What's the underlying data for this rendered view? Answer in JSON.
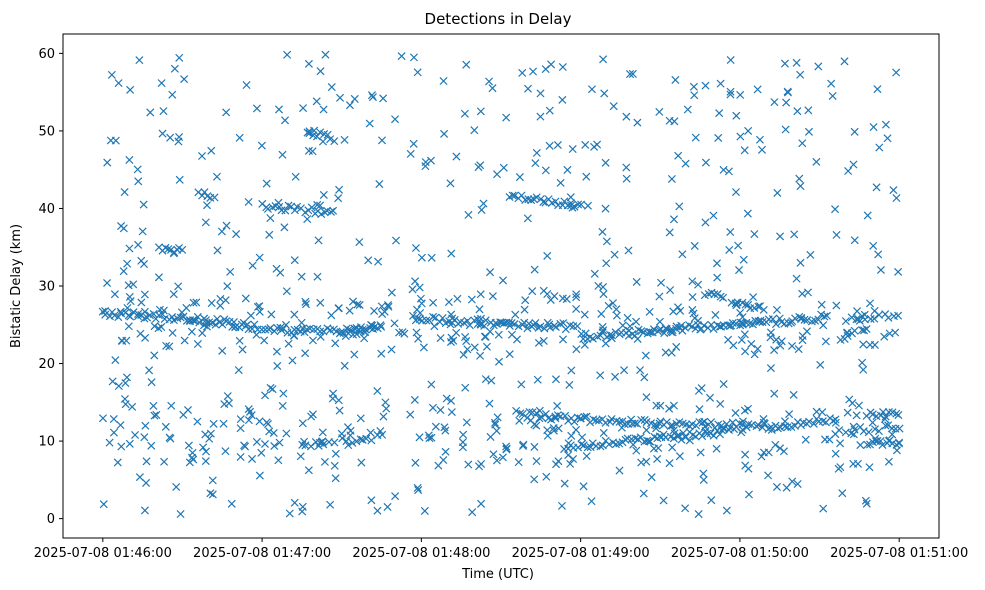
{
  "chart_data": {
    "type": "scatter",
    "title": "Detections in Delay",
    "xlabel": "Time (UTC)",
    "ylabel": "Bistatic Delay (km)",
    "marker": "x",
    "color": "#1f77b4",
    "xlim": [
      -0.25,
      5.25
    ],
    "ylim": [
      -2.5,
      62.5
    ],
    "x_unit": "minutes after 2025-07-08 01:46:00",
    "xticks": [
      {
        "value": 0,
        "label": "2025-07-08 01:46:00"
      },
      {
        "value": 1,
        "label": "2025-07-08 01:47:00"
      },
      {
        "value": 2,
        "label": "2025-07-08 01:48:00"
      },
      {
        "value": 3,
        "label": "2025-07-08 01:49:00"
      },
      {
        "value": 4,
        "label": "2025-07-08 01:50:00"
      },
      {
        "value": 5,
        "label": "2025-07-08 01:51:00"
      }
    ],
    "yticks": [
      {
        "value": 0,
        "label": "0"
      },
      {
        "value": 10,
        "label": "10"
      },
      {
        "value": 20,
        "label": "20"
      },
      {
        "value": 30,
        "label": "30"
      },
      {
        "value": 40,
        "label": "40"
      },
      {
        "value": 50,
        "label": "50"
      },
      {
        "value": 60,
        "label": "60"
      }
    ],
    "tracks": [
      {
        "x_start": 0.0,
        "x_end": 0.55,
        "y_start": 26.5,
        "y_end": 25.8,
        "step": 0.02
      },
      {
        "x_start": 0.55,
        "x_end": 1.2,
        "y_start": 25.8,
        "y_end": 24.0,
        "step": 0.02
      },
      {
        "x_start": 1.2,
        "x_end": 1.65,
        "y_start": 24.5,
        "y_end": 24.0,
        "step": 0.02
      },
      {
        "x_start": 1.95,
        "x_end": 2.55,
        "y_start": 25.8,
        "y_end": 25.0,
        "step": 0.02
      },
      {
        "x_start": 2.55,
        "x_end": 2.95,
        "y_start": 25.0,
        "y_end": 24.8,
        "step": 0.02
      },
      {
        "x_start": 3.0,
        "x_end": 3.6,
        "y_start": 23.5,
        "y_end": 24.3,
        "step": 0.02
      },
      {
        "x_start": 3.6,
        "x_end": 4.0,
        "y_start": 24.5,
        "y_end": 25.0,
        "step": 0.02
      },
      {
        "x_start": 4.0,
        "x_end": 4.55,
        "y_start": 25.0,
        "y_end": 26.0,
        "step": 0.02
      },
      {
        "x_start": 4.7,
        "x_end": 5.0,
        "y_start": 26.0,
        "y_end": 26.3,
        "step": 0.03
      },
      {
        "x_start": 1.0,
        "x_end": 1.45,
        "y_start": 40.3,
        "y_end": 39.5,
        "step": 0.02
      },
      {
        "x_start": 0.6,
        "x_end": 0.7,
        "y_start": 41.8,
        "y_end": 41.7,
        "step": 0.02
      },
      {
        "x_start": 2.55,
        "x_end": 3.0,
        "y_start": 41.6,
        "y_end": 40.3,
        "step": 0.02
      },
      {
        "x_start": 1.3,
        "x_end": 1.45,
        "y_start": 49.8,
        "y_end": 49.0,
        "step": 0.02
      },
      {
        "x_start": 2.9,
        "x_end": 3.9,
        "y_start": 9.3,
        "y_end": 11.2,
        "step": 0.02
      },
      {
        "x_start": 2.6,
        "x_end": 3.0,
        "y_start": 13.5,
        "y_end": 12.8,
        "step": 0.02
      },
      {
        "x_start": 3.0,
        "x_end": 4.2,
        "y_start": 12.8,
        "y_end": 11.8,
        "step": 0.02
      },
      {
        "x_start": 4.2,
        "x_end": 4.6,
        "y_start": 11.8,
        "y_end": 12.8,
        "step": 0.02
      },
      {
        "x_start": 4.6,
        "x_end": 5.0,
        "y_start": 11.2,
        "y_end": 11.8,
        "step": 0.03
      },
      {
        "x_start": 4.8,
        "x_end": 5.0,
        "y_start": 13.3,
        "y_end": 13.7,
        "step": 0.02
      },
      {
        "x_start": 4.8,
        "x_end": 5.0,
        "y_start": 9.5,
        "y_end": 9.9,
        "step": 0.02
      },
      {
        "x_start": 1.5,
        "x_end": 1.75,
        "y_start": 23.8,
        "y_end": 25.0,
        "step": 0.02
      },
      {
        "x_start": 3.8,
        "x_end": 3.9,
        "y_start": 29.2,
        "y_end": 28.8,
        "step": 0.02
      },
      {
        "x_start": 3.95,
        "x_end": 4.15,
        "y_start": 27.8,
        "y_end": 27.2,
        "step": 0.02
      },
      {
        "x_start": 0.35,
        "x_end": 0.5,
        "y_start": 34.8,
        "y_end": 34.7,
        "step": 0.02
      },
      {
        "x_start": 1.5,
        "x_end": 1.75,
        "y_start": 10.0,
        "y_end": 10.5,
        "step": 0.03
      },
      {
        "x_start": 1.25,
        "x_end": 1.45,
        "y_start": 9.5,
        "y_end": 9.5,
        "step": 0.03
      }
    ],
    "noise": {
      "count": 900,
      "x_range": [
        0.0,
        5.0
      ],
      "y_range": [
        0.5,
        60.0
      ],
      "cluster_fraction": 0.35,
      "cluster_centers": [
        10,
        12,
        25,
        26,
        24
      ]
    }
  }
}
